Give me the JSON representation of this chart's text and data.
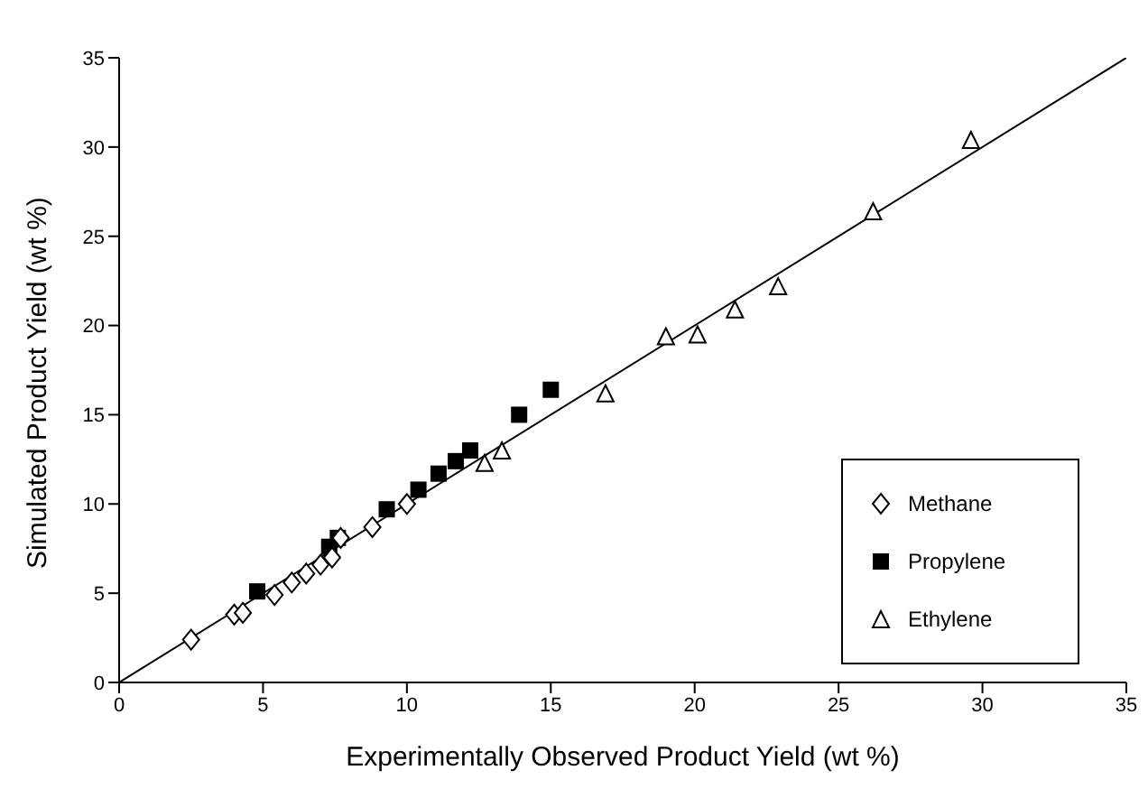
{
  "chart_data": {
    "type": "scatter",
    "xlabel": "Experimentally Observed Product Yield (wt %)",
    "ylabel": "Simulated Product Yield (wt %)",
    "xlim": [
      0,
      35
    ],
    "xticks": [
      0,
      5,
      10,
      15,
      20,
      25,
      30,
      35
    ],
    "ylim": [
      0,
      35
    ],
    "yticks": [
      0,
      5,
      10,
      15,
      20,
      25,
      30,
      35
    ],
    "legend": "bottom right",
    "series": [
      {
        "name": "Methane",
        "color": "#000000",
        "marker": "diamond",
        "x": [
          2.5,
          4.0,
          4.3,
          5.4,
          6.0,
          6.5,
          7.0,
          7.4,
          7.7,
          8.8,
          10.0
        ],
        "values": [
          2.4,
          3.8,
          3.9,
          4.9,
          5.6,
          6.1,
          6.6,
          7.0,
          8.1,
          8.7,
          10.0
        ]
      },
      {
        "name": "Propylene",
        "color": "#000000",
        "marker": "square",
        "x": [
          4.8,
          7.3,
          7.6,
          9.3,
          10.4,
          11.1,
          11.7,
          12.2,
          13.9,
          15.0
        ],
        "values": [
          5.1,
          7.6,
          8.1,
          9.7,
          10.8,
          11.7,
          12.4,
          13.0,
          15.0,
          16.4
        ]
      },
      {
        "name": "Ethylene",
        "color": "#000000",
        "marker": "triangle",
        "x": [
          12.7,
          13.3,
          16.9,
          19.0,
          20.1,
          21.4,
          22.9,
          26.2,
          29.6
        ],
        "values": [
          12.3,
          13.0,
          16.2,
          19.4,
          19.5,
          20.9,
          22.2,
          26.4,
          30.4
        ]
      },
      {
        "type": "line",
        "color": "#000000",
        "marker": "none",
        "x": [
          0,
          35
        ],
        "values": [
          0,
          35
        ]
      }
    ]
  }
}
